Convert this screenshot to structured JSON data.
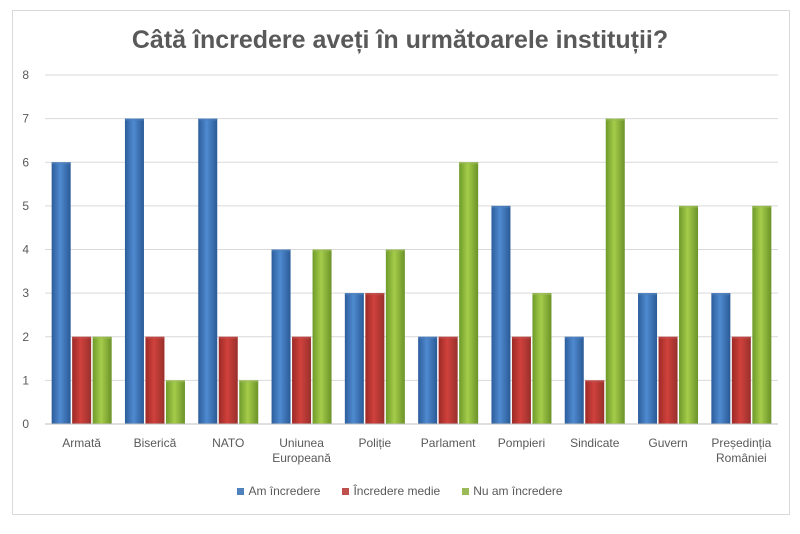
{
  "chart_data": {
    "type": "bar",
    "title": "Câtă încredere aveți în următoarele instituții?",
    "categories": [
      "Armată",
      "Biserică",
      "NATO",
      "Uniunea Europeană",
      "Poliție",
      "Parlament",
      "Pompieri",
      "Sindicate",
      "Guvern",
      "Președinția României"
    ],
    "category_lines": [
      [
        "Armată"
      ],
      [
        "Biserică"
      ],
      [
        "NATO"
      ],
      [
        "Uniunea",
        "Europeană"
      ],
      [
        "Poliție"
      ],
      [
        "Parlament"
      ],
      [
        "Pompieri"
      ],
      [
        "Sindicate"
      ],
      [
        "Guvern"
      ],
      [
        "Președinția",
        "României"
      ]
    ],
    "series": [
      {
        "name": "Am încredere",
        "color": "#4f81bd",
        "values": [
          6,
          7,
          7,
          4,
          3,
          2,
          5,
          2,
          3,
          3
        ]
      },
      {
        "name": "Încredere medie",
        "color": "#c0504d",
        "values": [
          2,
          2,
          2,
          2,
          3,
          2,
          2,
          1,
          2,
          2
        ]
      },
      {
        "name": "Nu am încredere",
        "color": "#9bbb59",
        "values": [
          2,
          1,
          1,
          4,
          4,
          6,
          3,
          7,
          5,
          5
        ]
      }
    ],
    "xlabel": "",
    "ylabel": "",
    "ylim": [
      0,
      8
    ],
    "yticks": [
      "0",
      "1",
      "2",
      "3",
      "4",
      "5",
      "6",
      "7",
      "8"
    ],
    "grid": true,
    "legend": "bottom"
  }
}
